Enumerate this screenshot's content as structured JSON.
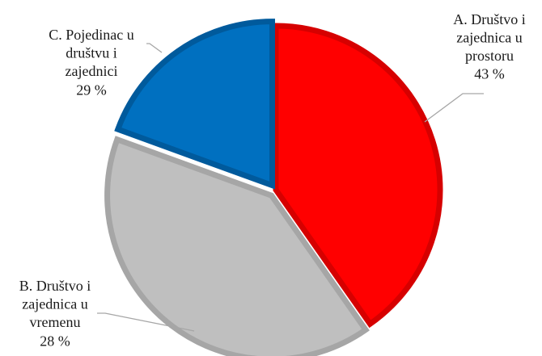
{
  "chart_data": {
    "type": "pie",
    "title": "",
    "categories": [
      "A. Društvo i zajednica u prostoru",
      "B. Društvo i zajednica u vremenu",
      "C. Pojedinac u društvu i zajednici"
    ],
    "values": [
      43,
      28,
      29
    ],
    "unit": "%",
    "start": "12 o'clock",
    "direction": "clockwise",
    "legend": "none",
    "labels": [
      {
        "lines": [
          "A. Društvo i",
          "zajednica u",
          "prostoru"
        ],
        "value": "43 %",
        "color": "#ff0000"
      },
      {
        "lines": [
          "B. Društvo i",
          "zajednica u",
          "vremenu"
        ],
        "value": "28 %",
        "color": "#bfbfbf"
      },
      {
        "lines": [
          "C. Pojedinac u",
          "društvu i",
          "zajednici"
        ],
        "value": "29 %",
        "color": "#0070c0"
      }
    ]
  }
}
